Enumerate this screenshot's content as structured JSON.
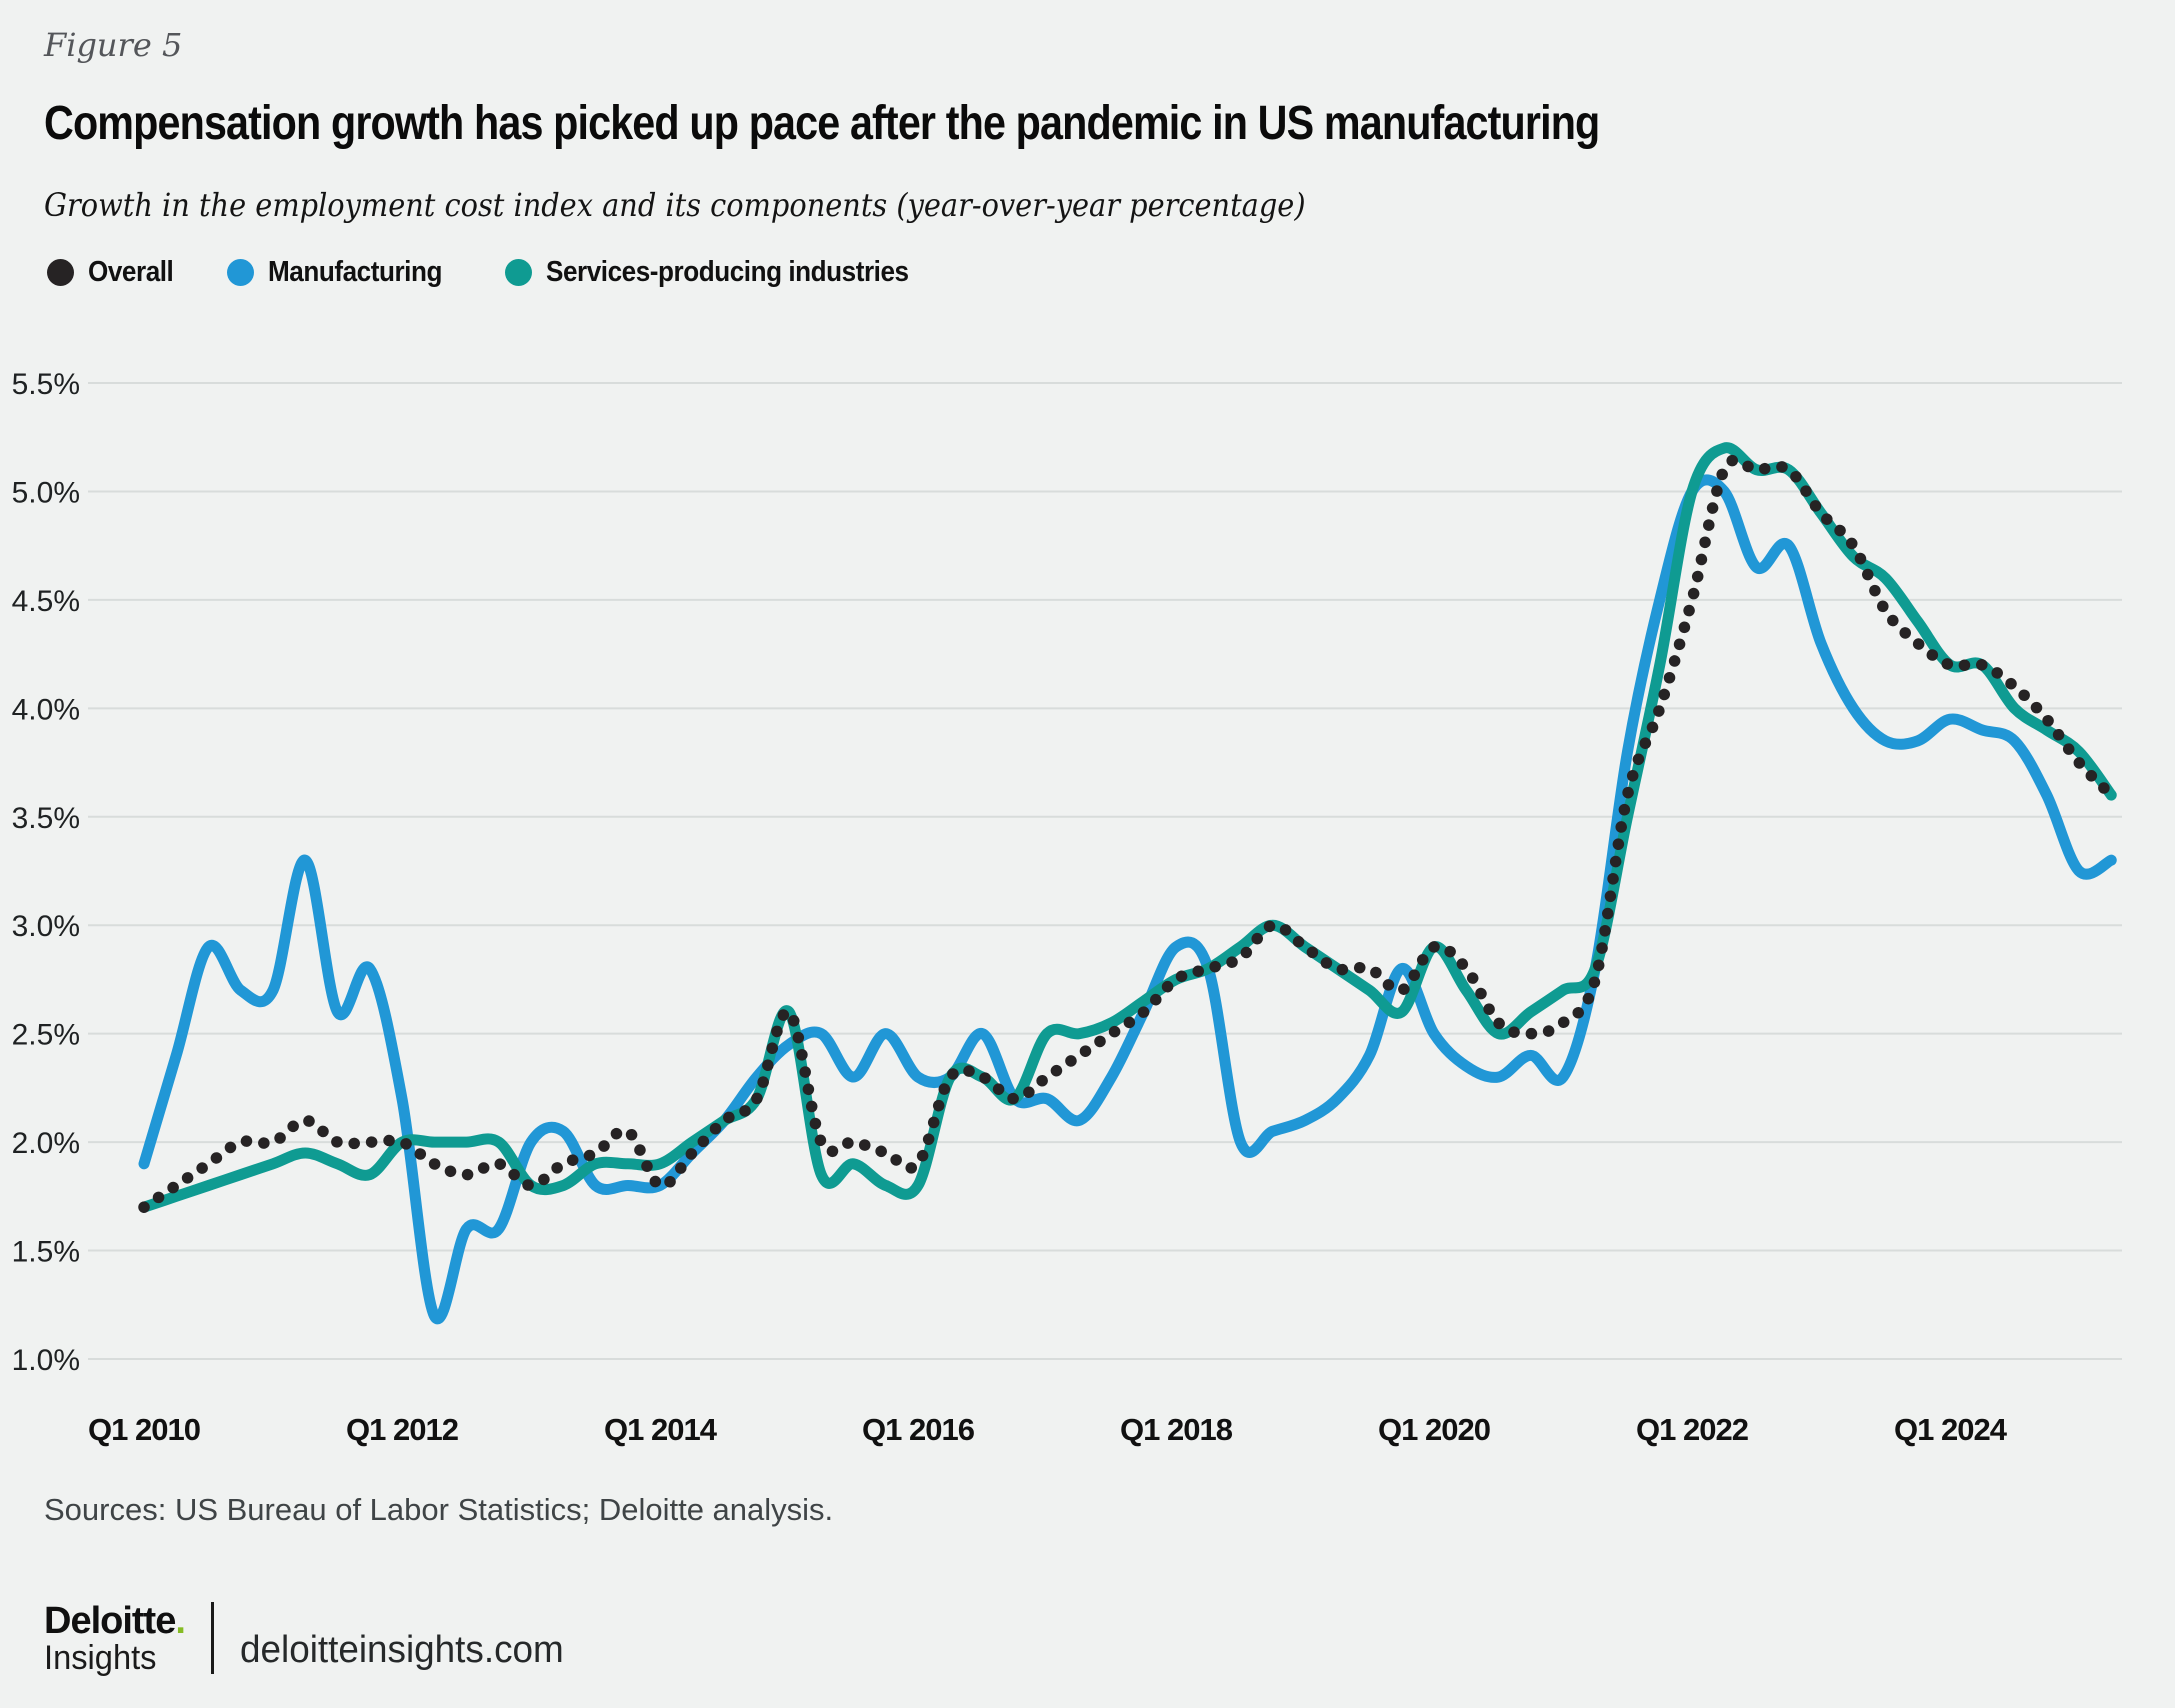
{
  "figure_label": "Figure 5",
  "title": "Compensation growth has picked up pace after the pandemic in US manufacturing",
  "subtitle": "Growth in the employment cost index and its components (year-over-year percentage)",
  "legend": [
    {
      "label": "Overall",
      "color": "#262324"
    },
    {
      "label": "Manufacturing",
      "color": "#2197d6"
    },
    {
      "label": "Services-producing industries",
      "color": "#0f9b92"
    }
  ],
  "colors": {
    "background": "#f0f2f1",
    "gridline": "#d8dcdb",
    "axis_text": "#1f2223",
    "accent_green": "#86bc25"
  },
  "chart_data": {
    "type": "line",
    "title": "Growth in the employment cost index and its components (year-over-year percentage)",
    "xlabel": "",
    "ylabel": "",
    "ylim": [
      1.0,
      5.5
    ],
    "grid": true,
    "legend_position": "top-left",
    "categories": [
      "2010 Q1",
      "2010 Q2",
      "2010 Q3",
      "2010 Q4",
      "2011 Q1",
      "2011 Q2",
      "2011 Q3",
      "2011 Q4",
      "2012 Q1",
      "2012 Q2",
      "2012 Q3",
      "2012 Q4",
      "2013 Q1",
      "2013 Q2",
      "2013 Q3",
      "2013 Q4",
      "2014 Q1",
      "2014 Q2",
      "2014 Q3",
      "2014 Q4",
      "2015 Q1",
      "2015 Q2",
      "2015 Q3",
      "2015 Q4",
      "2016 Q1",
      "2016 Q2",
      "2016 Q3",
      "2016 Q4",
      "2017 Q1",
      "2017 Q2",
      "2017 Q3",
      "2017 Q4",
      "2018 Q1",
      "2018 Q2",
      "2018 Q3",
      "2018 Q4",
      "2019 Q1",
      "2019 Q2",
      "2019 Q3",
      "2019 Q4",
      "2020 Q1",
      "2020 Q2",
      "2020 Q3",
      "2020 Q4",
      "2021 Q1",
      "2021 Q2",
      "2021 Q3",
      "2021 Q4",
      "2022 Q1",
      "2022 Q2",
      "2022 Q3",
      "2022 Q4",
      "2023 Q1",
      "2023 Q2",
      "2023 Q3",
      "2023 Q4",
      "2024 Q1",
      "2024 Q2",
      "2024 Q3",
      "2024 Q4",
      "2025 Q1",
      "2025 Q2"
    ],
    "x_ticks": [
      {
        "index": 0,
        "label": "Q1 2010"
      },
      {
        "index": 8,
        "label": "Q1 2012"
      },
      {
        "index": 16,
        "label": "Q1 2014"
      },
      {
        "index": 24,
        "label": "Q1 2016"
      },
      {
        "index": 32,
        "label": "Q1 2018"
      },
      {
        "index": 40,
        "label": "Q1 2020"
      },
      {
        "index": 48,
        "label": "Q1 2022"
      },
      {
        "index": 56,
        "label": "Q1 2024"
      }
    ],
    "y_tick_values": [
      5.5,
      5.0,
      4.5,
      4.0,
      3.5,
      3.0,
      2.5,
      2.0,
      1.5,
      1.0
    ],
    "y_tick_labels": [
      "5.5%",
      "5.0%",
      "4.5%",
      "4.0%",
      "3.5%",
      "3.0%",
      "2.5%",
      "2.0%",
      "1.5%",
      "1.0%"
    ],
    "series": [
      {
        "name": "Overall",
        "color": "#262324",
        "style": "dotted",
        "values": [
          1.7,
          1.8,
          1.9,
          2.0,
          2.0,
          2.1,
          2.0,
          2.0,
          2.0,
          1.9,
          1.85,
          1.9,
          1.8,
          1.9,
          1.95,
          2.05,
          1.8,
          1.95,
          2.1,
          2.2,
          2.6,
          2.0,
          2.0,
          1.95,
          1.9,
          2.3,
          2.3,
          2.2,
          2.3,
          2.4,
          2.5,
          2.6,
          2.75,
          2.8,
          2.85,
          3.0,
          2.9,
          2.8,
          2.8,
          2.7,
          2.9,
          2.8,
          2.55,
          2.5,
          2.55,
          2.75,
          3.6,
          4.0,
          4.5,
          5.1,
          5.1,
          5.1,
          4.9,
          4.75,
          4.45,
          4.3,
          4.2,
          4.2,
          4.1,
          3.95,
          3.75,
          3.6
        ]
      },
      {
        "name": "Manufacturing",
        "color": "#2197d6",
        "style": "solid",
        "values": [
          1.9,
          2.4,
          2.9,
          2.7,
          2.7,
          3.3,
          2.6,
          2.8,
          2.2,
          1.2,
          1.6,
          1.6,
          2.0,
          2.05,
          1.8,
          1.8,
          1.8,
          1.95,
          2.1,
          2.3,
          2.45,
          2.5,
          2.3,
          2.5,
          2.3,
          2.3,
          2.5,
          2.2,
          2.2,
          2.1,
          2.3,
          2.6,
          2.9,
          2.8,
          2.0,
          2.05,
          2.1,
          2.2,
          2.4,
          2.8,
          2.5,
          2.35,
          2.3,
          2.4,
          2.3,
          2.8,
          3.8,
          4.5,
          5.0,
          5.0,
          4.65,
          4.75,
          4.3,
          4.0,
          3.85,
          3.85,
          3.95,
          3.9,
          3.85,
          3.6,
          3.25,
          3.3
        ]
      },
      {
        "name": "Services-producing industries",
        "color": "#0f9b92",
        "style": "solid",
        "values": [
          1.7,
          1.75,
          1.8,
          1.85,
          1.9,
          1.95,
          1.9,
          1.85,
          2.0,
          2.0,
          2.0,
          2.0,
          1.8,
          1.8,
          1.9,
          1.9,
          1.9,
          2.0,
          2.1,
          2.2,
          2.6,
          1.85,
          1.9,
          1.8,
          1.8,
          2.3,
          2.3,
          2.2,
          2.5,
          2.5,
          2.55,
          2.65,
          2.75,
          2.8,
          2.9,
          3.0,
          2.9,
          2.8,
          2.7,
          2.6,
          2.9,
          2.7,
          2.5,
          2.6,
          2.7,
          2.8,
          3.5,
          4.2,
          5.0,
          5.2,
          5.1,
          5.1,
          4.9,
          4.7,
          4.6,
          4.4,
          4.2,
          4.2,
          4.0,
          3.9,
          3.8,
          3.6
        ]
      }
    ]
  },
  "footer": {
    "sources": "Sources: US Bureau of Labor Statistics; Deloitte analysis.",
    "brand_name": "Deloitte",
    "brand_dot": ".",
    "brand_sub": "Insights",
    "site": "deloitteinsights.com"
  }
}
